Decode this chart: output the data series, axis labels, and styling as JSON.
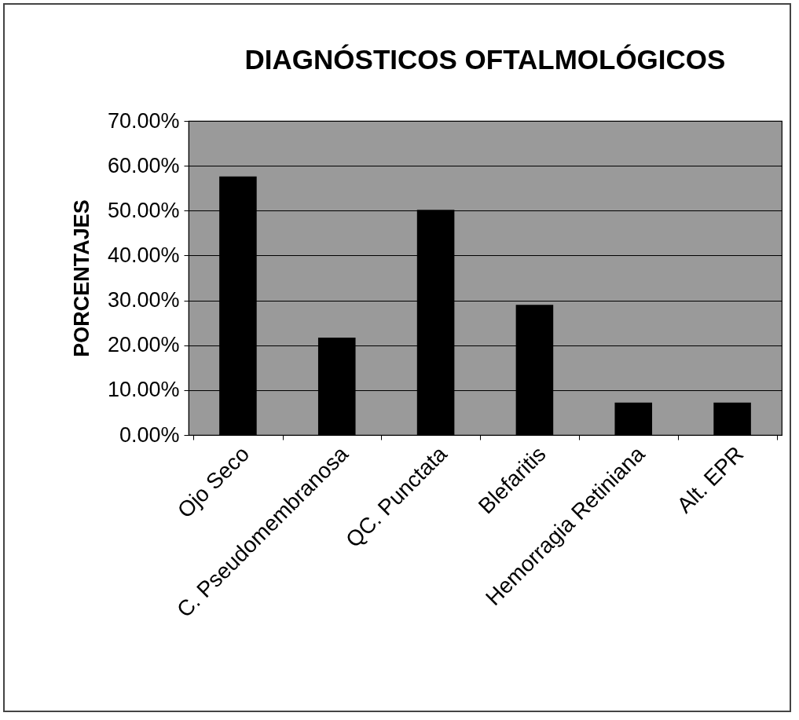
{
  "chart_data": {
    "type": "bar",
    "title": "DIAGNÓSTICOS OFTALMOLÓGICOS",
    "ylabel": "PORCENTAJES",
    "categories": [
      "Ojo Seco",
      "C. Pseudomembranosa",
      "QC. Punctata",
      "Blefaritis",
      "Hemorragia Retiniana",
      "Alt. EPR"
    ],
    "values": [
      57.6,
      21.7,
      50.2,
      29.0,
      7.2,
      7.2
    ],
    "color": "#000000",
    "ylim": [
      0,
      70
    ],
    "yticks": [
      {
        "value": 0,
        "label": "0.00%"
      },
      {
        "value": 10,
        "label": "10.00%"
      },
      {
        "value": 20,
        "label": "20.00%"
      },
      {
        "value": 30,
        "label": "30.00%"
      },
      {
        "value": 40,
        "label": "40.00%"
      },
      {
        "value": 50,
        "label": "50.00%"
      },
      {
        "value": 60,
        "label": "60.00%"
      },
      {
        "value": 70,
        "label": "70.00%"
      }
    ],
    "grid": "y"
  }
}
